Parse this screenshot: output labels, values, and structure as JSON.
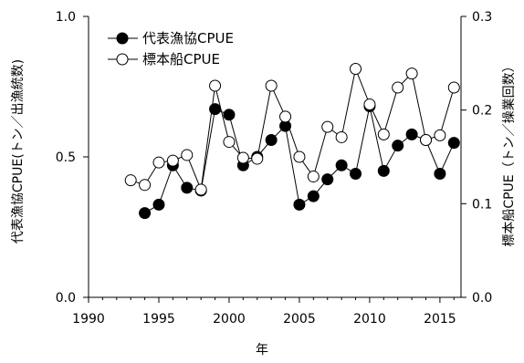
{
  "chart_data": {
    "type": "line",
    "x": [
      1993,
      1994,
      1995,
      1996,
      1997,
      1998,
      1999,
      2000,
      2001,
      2002,
      2003,
      2004,
      2005,
      2006,
      2007,
      2008,
      2009,
      2010,
      2011,
      2012,
      2013,
      2014,
      2015,
      2016
    ],
    "series": [
      {
        "name": "代表漁協CPUE",
        "axis": "left",
        "marker": "filled-circle",
        "color": "#000000",
        "values": [
          null,
          0.3,
          0.33,
          0.47,
          0.39,
          0.38,
          0.67,
          0.65,
          0.47,
          0.5,
          0.56,
          0.61,
          0.33,
          0.36,
          0.42,
          0.47,
          0.44,
          0.68,
          0.45,
          0.54,
          0.58,
          0.56,
          0.44,
          0.55
        ]
      },
      {
        "name": "標本船CPUE",
        "axis": "right",
        "marker": "open-circle",
        "color": "#000000",
        "values": [
          0.125,
          0.12,
          0.144,
          0.146,
          0.152,
          0.115,
          0.226,
          0.166,
          0.149,
          0.148,
          0.226,
          0.193,
          0.15,
          0.129,
          0.182,
          0.171,
          0.244,
          0.206,
          0.174,
          0.224,
          0.239,
          0.168,
          0.173,
          0.224
        ]
      }
    ],
    "xlabel": "年",
    "ylabel": "代表漁協CPUE(トン／出漁統数)",
    "y2label": "標本船CPUE（トン／操業回数）",
    "xlim": [
      1990,
      2016.5
    ],
    "ylim": [
      0,
      1.0
    ],
    "y2lim": [
      0,
      0.3
    ],
    "xticks": [
      1990,
      1995,
      2000,
      2005,
      2010,
      2015
    ],
    "xtick_labels": [
      "1990",
      "1995",
      "2000",
      "2005",
      "2010",
      "2015"
    ],
    "yticks": [
      0,
      0.5,
      1.0
    ],
    "ytick_labels": [
      "0.0",
      "0.5",
      "1.0"
    ],
    "y2ticks": [
      0,
      0.1,
      0.2,
      0.3
    ],
    "y2tick_labels": [
      "0.0",
      "0.1",
      "0.2",
      "0.3"
    ],
    "legend": "top-left",
    "grid": false
  }
}
